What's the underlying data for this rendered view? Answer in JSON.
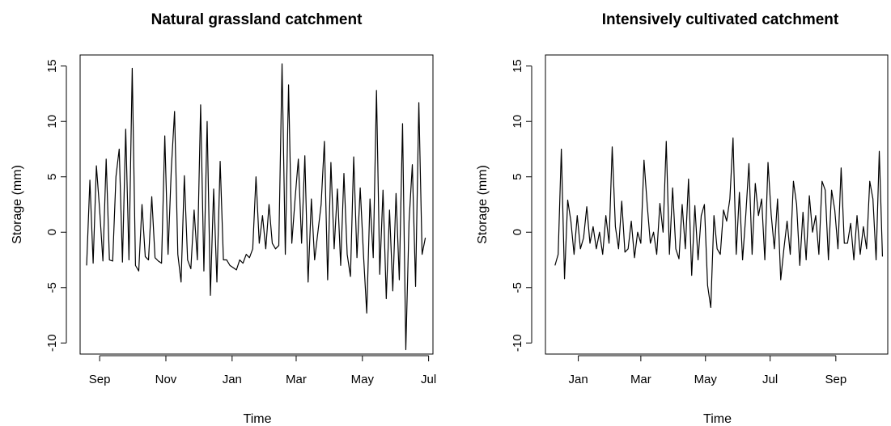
{
  "chart_data": [
    {
      "type": "line",
      "title": "Natural grassland catchment",
      "xlabel": "Time",
      "ylabel": "Storage (mm)",
      "ylim": [
        -11,
        16
      ],
      "y_ticks": [
        -10,
        -5,
        0,
        5,
        10,
        15
      ],
      "x_ticks": [
        "Sep",
        "Nov",
        "Jan",
        "Mar",
        "May",
        "Jul"
      ],
      "x_range": [
        "2009-08-14",
        "2010-07-05"
      ],
      "series": [
        {
          "x": [
            "2009-08-20",
            "2009-08-23",
            "2009-08-26",
            "2009-08-29",
            "2009-09-01",
            "2009-09-04",
            "2009-09-07",
            "2009-09-10",
            "2009-09-13",
            "2009-09-16",
            "2009-09-19",
            "2009-09-22",
            "2009-09-25",
            "2009-09-28",
            "2009-10-01",
            "2009-10-04",
            "2009-10-07",
            "2009-10-10",
            "2009-10-13",
            "2009-10-16",
            "2009-10-19",
            "2009-10-22",
            "2009-10-25",
            "2009-10-28",
            "2009-10-31",
            "2009-11-03",
            "2009-11-06",
            "2009-11-09",
            "2009-11-12",
            "2009-11-15",
            "2009-11-18",
            "2009-11-21",
            "2009-11-24",
            "2009-11-27",
            "2009-11-30",
            "2009-12-03",
            "2009-12-06",
            "2009-12-09",
            "2009-12-12",
            "2009-12-15",
            "2009-12-18",
            "2009-12-21",
            "2009-12-24",
            "2009-12-27",
            "2009-12-30",
            "2010-01-02",
            "2010-01-05",
            "2010-01-08",
            "2010-01-11",
            "2010-01-14",
            "2010-01-17",
            "2010-01-20",
            "2010-01-23",
            "2010-01-26",
            "2010-01-29",
            "2010-02-01",
            "2010-02-04",
            "2010-02-07",
            "2010-02-10",
            "2010-02-13",
            "2010-02-16",
            "2010-02-19",
            "2010-02-22",
            "2010-02-25",
            "2010-02-28",
            "2010-03-03",
            "2010-03-06",
            "2010-03-09",
            "2010-03-12",
            "2010-03-15",
            "2010-03-18",
            "2010-03-21",
            "2010-03-24",
            "2010-03-27",
            "2010-03-30",
            "2010-04-02",
            "2010-04-05",
            "2010-04-08",
            "2010-04-11",
            "2010-04-14",
            "2010-04-17",
            "2010-04-20",
            "2010-04-23",
            "2010-04-26",
            "2010-04-29",
            "2010-05-02",
            "2010-05-05",
            "2010-05-08",
            "2010-05-11",
            "2010-05-14",
            "2010-05-17",
            "2010-05-20",
            "2010-05-23",
            "2010-05-26",
            "2010-05-29",
            "2010-06-01",
            "2010-06-04",
            "2010-06-07",
            "2010-06-10",
            "2010-06-13",
            "2010-06-16",
            "2010-06-19",
            "2010-06-22",
            "2010-06-25",
            "2010-06-28"
          ],
          "y": [
            -3,
            4.7,
            -2.8,
            6,
            2,
            -2.6,
            6.6,
            -2.5,
            -2.6,
            5,
            7.5,
            -2.7,
            9.3,
            -2.5,
            14.8,
            -3,
            -3.5,
            2.5,
            -2.2,
            -2.5,
            3.2,
            -2.3,
            -2.6,
            -2.8,
            8.7,
            -2,
            5.7,
            10.9,
            -2,
            -4.5,
            5.1,
            -2.5,
            -3.3,
            2,
            -2.5,
            11.5,
            -3.5,
            10,
            -5.7,
            3.9,
            -4.5,
            6.4,
            -2.5,
            -2.5,
            -3,
            -3.2,
            -3.4,
            -2.5,
            -2.8,
            -2,
            -2.3,
            -1.5,
            5,
            -1,
            1.5,
            -1.5,
            2.5,
            -1,
            -1.5,
            -1.2,
            15.2,
            -2,
            13.3,
            -1,
            3,
            6.6,
            -1,
            6.9,
            -4.5,
            3,
            -2.5,
            0,
            2.5,
            8.2,
            -4.3,
            6.3,
            -1.5,
            3.9,
            -3,
            5.3,
            -2,
            -4,
            6.8,
            -2.3,
            4,
            -2,
            -7.3,
            3,
            -2.3,
            12.8,
            -3.8,
            3.8,
            -6,
            2,
            -5.3,
            3.5,
            -4.3,
            9.8,
            -10.6,
            1,
            6.1,
            -4.9,
            11.7,
            -2,
            -0.5
          ]
        }
      ]
    },
    {
      "type": "line",
      "title": "Intensively cultivated catchment",
      "xlabel": "Time",
      "ylabel": "Storage (mm)",
      "ylim": [
        -11,
        16
      ],
      "y_ticks": [
        -10,
        -5,
        0,
        5,
        10,
        15
      ],
      "x_ticks": [
        "Jan",
        "Mar",
        "May",
        "Jul",
        "Sep"
      ],
      "x_range": [
        "2009-12-01",
        "2010-10-20"
      ],
      "series": [
        {
          "x": [
            "2009-12-10",
            "2009-12-13",
            "2009-12-16",
            "2009-12-19",
            "2009-12-22",
            "2009-12-25",
            "2009-12-28",
            "2009-12-31",
            "2010-01-03",
            "2010-01-06",
            "2010-01-09",
            "2010-01-12",
            "2010-01-15",
            "2010-01-18",
            "2010-01-21",
            "2010-01-24",
            "2010-01-27",
            "2010-01-30",
            "2010-02-02",
            "2010-02-05",
            "2010-02-08",
            "2010-02-11",
            "2010-02-14",
            "2010-02-17",
            "2010-02-20",
            "2010-02-23",
            "2010-02-26",
            "2010-03-01",
            "2010-03-04",
            "2010-03-07",
            "2010-03-10",
            "2010-03-13",
            "2010-03-16",
            "2010-03-19",
            "2010-03-22",
            "2010-03-25",
            "2010-03-28",
            "2010-03-31",
            "2010-04-03",
            "2010-04-06",
            "2010-04-09",
            "2010-04-12",
            "2010-04-15",
            "2010-04-18",
            "2010-04-21",
            "2010-04-24",
            "2010-04-27",
            "2010-04-30",
            "2010-05-03",
            "2010-05-06",
            "2010-05-09",
            "2010-05-12",
            "2010-05-15",
            "2010-05-18",
            "2010-05-21",
            "2010-05-24",
            "2010-05-27",
            "2010-05-30",
            "2010-06-02",
            "2010-06-05",
            "2010-06-08",
            "2010-06-11",
            "2010-06-14",
            "2010-06-17",
            "2010-06-20",
            "2010-06-23",
            "2010-06-26",
            "2010-06-29",
            "2010-07-02",
            "2010-07-05",
            "2010-07-08",
            "2010-07-11",
            "2010-07-14",
            "2010-07-17",
            "2010-07-20",
            "2010-07-23",
            "2010-07-26",
            "2010-07-29",
            "2010-08-01",
            "2010-08-04",
            "2010-08-07",
            "2010-08-10",
            "2010-08-13",
            "2010-08-16",
            "2010-08-19",
            "2010-08-22",
            "2010-08-25",
            "2010-08-28",
            "2010-08-31",
            "2010-09-03",
            "2010-09-06",
            "2010-09-09",
            "2010-09-12",
            "2010-09-15",
            "2010-09-18",
            "2010-09-21",
            "2010-09-24",
            "2010-09-27",
            "2010-09-30",
            "2010-10-03",
            "2010-10-06",
            "2010-10-09",
            "2010-10-12",
            "2010-10-15"
          ],
          "y": [
            -3,
            -2,
            7.5,
            -4.2,
            2.9,
            1,
            -2,
            1.5,
            -1.5,
            -0.5,
            2.3,
            -1,
            0.5,
            -1.5,
            0,
            -2,
            1.5,
            -1,
            7.7,
            0.5,
            -1.5,
            2.8,
            -1.8,
            -1.5,
            1,
            -2.3,
            0,
            -1,
            6.5,
            2.5,
            -1,
            0,
            -2,
            2.6,
            0,
            8.2,
            -2,
            4,
            -1.5,
            -2.4,
            2.5,
            -1.5,
            4.8,
            -3.9,
            2.4,
            -2.5,
            1.5,
            2.5,
            -4.8,
            -6.8,
            1.5,
            -1.5,
            -2,
            2,
            1,
            3,
            8.5,
            -2,
            3.6,
            -2.5,
            1.5,
            6.2,
            -2,
            4.4,
            1.5,
            3,
            -2.5,
            6.3,
            1.6,
            -1.5,
            3,
            -4.3,
            -1.5,
            1,
            -2,
            4.6,
            2.5,
            -3,
            1.8,
            -2.5,
            3.3,
            0,
            1.5,
            -2,
            4.6,
            3.8,
            -2.5,
            3.8,
            2,
            -1.5,
            5.8,
            -1,
            -1,
            0.8,
            -2.5,
            1.5,
            -2,
            0.5,
            -1.5,
            4.6,
            3,
            -2.5,
            7.3,
            -2.2
          ]
        }
      ]
    }
  ]
}
